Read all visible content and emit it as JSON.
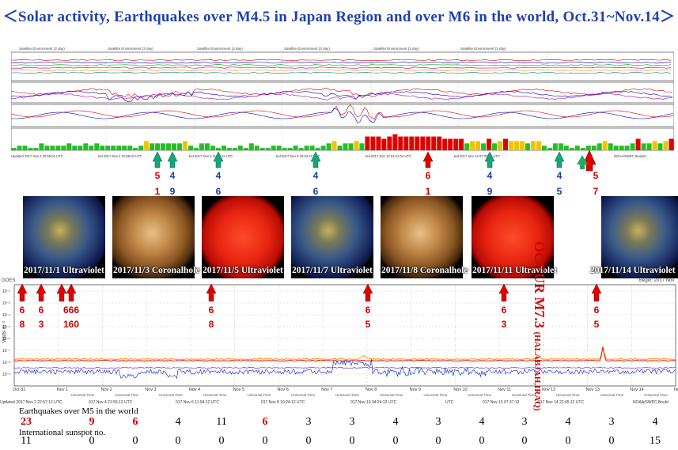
{
  "title": "＜Solar activity, Earthquakes over M4.5 in Japan Region and over M6 in the world, Oct.31~Nov.14＞",
  "colors": {
    "title": "#1f3fb0",
    "red_arrow": "#e00000",
    "green_arrow": "#19a37a",
    "japan_digit": "#1a3aa8",
    "world_digit": "#d40000"
  },
  "top_panel": {
    "header_labels": [
      "Satellite Environment (3 day)",
      "Satellite Environment (3 day)",
      "Satellite Environment (3 day)",
      "Satellite Environment (3 day)",
      "Satellite Environment (3 day)",
      "Satellite Environment (3 day)"
    ],
    "updated_labels": [
      "Updated 2017 Nov 2 22:59:04 UTC",
      "ted 2017 Nov 4 21:56:04 UTC",
      "ted 2017 Nov 6 11:04:12 UTC",
      "ted 2017 Nov 8 10:04:12 UTC",
      "ted 2017 Nov 10 04:21:04 UTC",
      "ted 2017 Nov 13 07:37:04 UTC",
      "NOAA/SWPC Boulder"
    ],
    "axis_text": "Universal Time"
  },
  "japan_arrows": [
    {
      "label": "green-arrow",
      "digit_top": "5",
      "digit_bottom": "1",
      "top_color": "red",
      "day": "Nov 1"
    },
    {
      "label": "green-arrow",
      "digit_top": "4",
      "digit_bottom": "9",
      "day": "Nov 1"
    },
    {
      "label": "green-arrow",
      "digit_top": "4",
      "digit_bottom": "6",
      "day": "Nov 4"
    },
    {
      "label": "green-arrow",
      "digit_top": "4",
      "digit_bottom": "6",
      "day": "Nov 7"
    },
    {
      "label": "red-arrow",
      "digit_top": "6",
      "digit_bottom": "1",
      "day": "Nov 9"
    },
    {
      "label": "green-arrow",
      "digit_top": "4",
      "digit_bottom": "9",
      "day": "Nov 11"
    },
    {
      "label": "green-arrow",
      "digit_top": "4",
      "digit_bottom": "5",
      "day": "Nov 12"
    },
    {
      "label": "red-arrow",
      "digit_top": "5",
      "digit_bottom": "7",
      "day": "Nov 13"
    }
  ],
  "occur_text": "OCCUR M7.3",
  "occur_place": "(HALABJAH,IRAQ)",
  "sun_images": [
    {
      "caption": "2017/11/1 Ultraviolet",
      "kind": "uv-blue"
    },
    {
      "caption": "2017/11/3 Coronalhole",
      "kind": "corona"
    },
    {
      "caption": "2017/11/5 Ultraviolet",
      "kind": "uv-red"
    },
    {
      "caption": "2017/11/7 Ultraviolet",
      "kind": "uv-blue"
    },
    {
      "caption": "2017/11/8 Coronalhole",
      "kind": "corona"
    },
    {
      "caption": "2017/11/11 Ultraviolet",
      "kind": "uv-red"
    },
    {
      "caption": "2017/11/14 Ultraviolet",
      "kind": "uv-blue"
    }
  ],
  "world_arrows": [
    {
      "digit_top": "6",
      "digit_bottom": "8"
    },
    {
      "digit_top": "6",
      "digit_bottom": "3"
    },
    {
      "digit_top": "666",
      "digit_bottom": "160"
    },
    {
      "digit_top": "6",
      "digit_bottom": "8"
    },
    {
      "digit_top": "6",
      "digit_bottom": "5"
    },
    {
      "digit_top": "6",
      "digit_bottom": "3"
    },
    {
      "digit_top": "6",
      "digit_bottom": "5"
    }
  ],
  "bottom_panel": {
    "goes_label": "GOES",
    "begin_label": "Begin: 2017 Nov",
    "ylabel": "Watts m⁻²",
    "yticks": [
      "10⁻²",
      "10⁻³",
      "10⁻⁴",
      "10⁻⁵",
      "10⁻⁶",
      "10⁻⁷",
      "10⁻⁸",
      "10⁻⁹"
    ],
    "date_ticks": [
      "Oct 31",
      "Nov 1",
      "Nov 2",
      "Nov 3",
      "Nov 4",
      "Nov 5",
      "Nov 6",
      "Nov 7",
      "Nov 8",
      "Nov 9",
      "Nov 10",
      "Nov 11",
      "Nov 12",
      "Nov 13",
      "Nov 14",
      "Nov"
    ],
    "ut_label": "Universal Time",
    "updated_labels": [
      "Updated 2017 Nov 2 22:57:12 UTC",
      "017 Nov 4 21:56:12 UTC",
      "017 Nov 6 11:04:12 UTC",
      "017 Nov 8 10:24:12 UTC",
      "017 Nov 10 04:24:12 UTC",
      "UTC",
      "017 Nov 13 07:37:12",
      "017 Nov 14 22:45:12 UTC",
      "NOAA/SWPC Bould"
    ]
  },
  "table": {
    "row1_label": "Earthquakes over M5 in the world",
    "row2_label": "International sunspot no.",
    "earthquakes": [
      "23",
      "9",
      "6",
      "4",
      "11",
      "6",
      "3",
      "3",
      "4",
      "3",
      "4",
      "3",
      "4",
      "3",
      "4"
    ],
    "earthquakes_red": [
      true,
      true,
      true,
      false,
      false,
      true,
      false,
      false,
      false,
      false,
      false,
      false,
      false,
      false,
      false
    ],
    "sunspots": [
      "11",
      "0",
      "0",
      "0",
      "0",
      "0",
      "0",
      "0",
      "0",
      "0",
      "0",
      "0",
      "0",
      "0",
      "15"
    ]
  },
  "chart_data": [
    {
      "type": "bar",
      "title": "",
      "xlabel": "Universal Time",
      "ylabel": "",
      "categories": [
        "Oct 31",
        "Nov 1",
        "Nov 2",
        "Nov 3",
        "Nov 4",
        "Nov 5",
        "Nov 6",
        "Nov 7",
        "Nov 8",
        "Nov 9",
        "Nov 10",
        "Nov 11",
        "Nov 12",
        "Nov 13",
        "Nov 14"
      ],
      "series": [
        {
          "values": [
            2,
            3,
            2,
            3,
            2,
            2,
            2,
            3,
            6,
            5,
            4,
            4,
            2,
            3,
            4
          ]
        }
      ]
    },
    {
      "type": "table",
      "columns": [
        "Oct 31",
        "Nov 1",
        "Nov 2",
        "Nov 3",
        "Nov 4",
        "Nov 5",
        "Nov 6",
        "Nov 7",
        "Nov 8",
        "Nov 9",
        "Nov 10",
        "Nov 11",
        "Nov 12",
        "Nov 13",
        "Nov 14"
      ],
      "rows": [
        {
          "name": "Earthquakes over M5 in the world",
          "values": [
            23,
            9,
            6,
            4,
            11,
            6,
            3,
            3,
            4,
            3,
            4,
            3,
            4,
            3,
            4
          ]
        },
        {
          "name": "International sunspot no.",
          "values": [
            11,
            0,
            0,
            0,
            0,
            0,
            0,
            0,
            0,
            0,
            0,
            0,
            0,
            0,
            15
          ]
        }
      ]
    }
  ]
}
